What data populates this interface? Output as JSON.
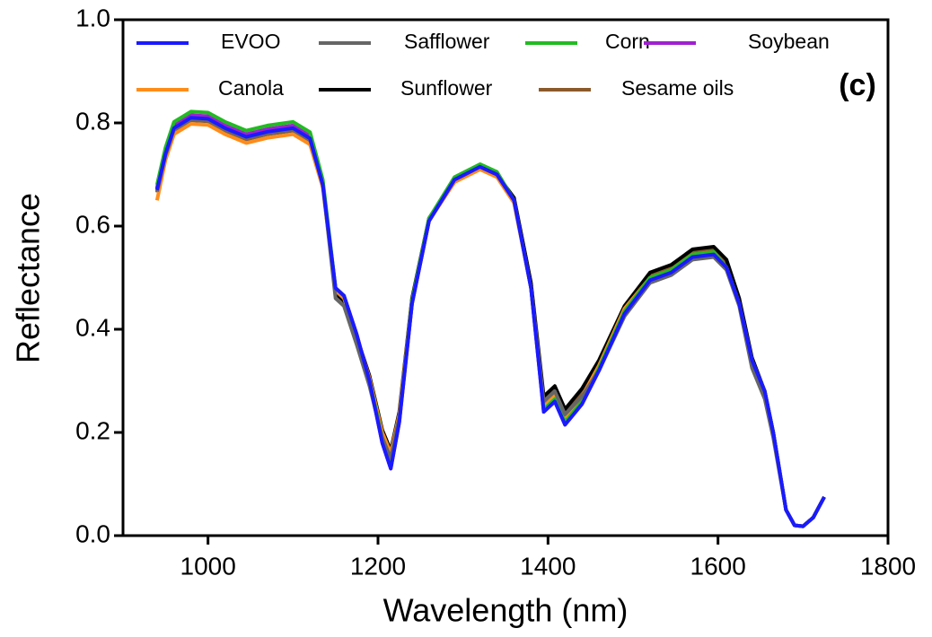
{
  "chart_data": {
    "type": "line",
    "xlabel": "Wavelength (nm)",
    "ylabel": "Reflectance",
    "annotation": "(c)",
    "xlim": [
      900,
      1800
    ],
    "xticks": [
      1000,
      1200,
      1400,
      1600,
      1800
    ],
    "ylim": [
      0,
      1.0
    ],
    "yticks": [
      {
        "value": 0,
        "label": "0.0"
      },
      {
        "value": 0.2,
        "label": "0.2"
      },
      {
        "value": 0.4,
        "label": "0.4"
      },
      {
        "value": 0.6,
        "label": "0.6"
      },
      {
        "value": 0.8,
        "label": "0.8"
      },
      {
        "value": 1.0,
        "label": "1.0"
      }
    ],
    "grid": false,
    "x": [
      940,
      950,
      960,
      980,
      1000,
      1020,
      1045,
      1070,
      1100,
      1120,
      1135,
      1150,
      1160,
      1175,
      1190,
      1205,
      1215,
      1225,
      1240,
      1260,
      1290,
      1320,
      1340,
      1360,
      1380,
      1395,
      1408,
      1420,
      1440,
      1460,
      1490,
      1520,
      1545,
      1570,
      1595,
      1610,
      1625,
      1640,
      1655,
      1665,
      1680,
      1690,
      1700,
      1712,
      1725
    ],
    "series": [
      {
        "name": "EVOO",
        "color": "#1a1aff",
        "values": [
          0.67,
          0.74,
          0.79,
          0.81,
          0.808,
          0.79,
          0.773,
          0.783,
          0.79,
          0.77,
          0.68,
          0.48,
          0.465,
          0.39,
          0.3,
          0.18,
          0.13,
          0.22,
          0.45,
          0.61,
          0.69,
          0.715,
          0.7,
          0.65,
          0.48,
          0.24,
          0.26,
          0.215,
          0.255,
          0.32,
          0.43,
          0.495,
          0.51,
          0.54,
          0.545,
          0.52,
          0.45,
          0.34,
          0.28,
          0.2,
          0.05,
          0.02,
          0.018,
          0.035,
          0.075
        ]
      },
      {
        "name": "Safflower",
        "color": "#666666",
        "values": [
          0.667,
          0.737,
          0.787,
          0.807,
          0.805,
          0.787,
          0.77,
          0.78,
          0.787,
          0.767,
          0.68,
          0.46,
          0.445,
          0.37,
          0.29,
          0.19,
          0.15,
          0.23,
          0.45,
          0.61,
          0.69,
          0.715,
          0.7,
          0.65,
          0.48,
          0.26,
          0.28,
          0.235,
          0.27,
          0.32,
          0.425,
          0.49,
          0.505,
          0.535,
          0.54,
          0.515,
          0.445,
          0.325,
          0.265,
          0.19,
          0.05,
          0.02,
          0.018,
          0.035,
          0.075
        ]
      },
      {
        "name": "Corn",
        "color": "#22bb22",
        "values": [
          0.68,
          0.752,
          0.802,
          0.822,
          0.82,
          0.802,
          0.785,
          0.795,
          0.802,
          0.782,
          0.69,
          0.48,
          0.465,
          0.385,
          0.3,
          0.19,
          0.145,
          0.225,
          0.455,
          0.615,
          0.695,
          0.72,
          0.705,
          0.65,
          0.48,
          0.245,
          0.265,
          0.22,
          0.26,
          0.325,
          0.435,
          0.5,
          0.515,
          0.545,
          0.55,
          0.52,
          0.45,
          0.34,
          0.28,
          0.2,
          0.05,
          0.02,
          0.018,
          0.035,
          0.075
        ]
      },
      {
        "name": "Soybean",
        "color": "#a020d0",
        "values": [
          0.675,
          0.745,
          0.795,
          0.815,
          0.813,
          0.795,
          0.778,
          0.788,
          0.795,
          0.775,
          0.68,
          0.48,
          0.465,
          0.39,
          0.3,
          0.18,
          0.13,
          0.22,
          0.45,
          0.61,
          0.69,
          0.715,
          0.7,
          0.65,
          0.48,
          0.24,
          0.26,
          0.215,
          0.255,
          0.32,
          0.43,
          0.495,
          0.51,
          0.54,
          0.545,
          0.52,
          0.45,
          0.34,
          0.28,
          0.2,
          0.05,
          0.02,
          0.018,
          0.035,
          0.075
        ]
      },
      {
        "name": "Canola",
        "color": "#ff8c1a",
        "values": [
          0.65,
          0.728,
          0.778,
          0.798,
          0.796,
          0.778,
          0.761,
          0.771,
          0.778,
          0.758,
          0.675,
          0.475,
          0.46,
          0.385,
          0.305,
          0.2,
          0.16,
          0.235,
          0.455,
          0.61,
          0.685,
          0.71,
          0.695,
          0.645,
          0.48,
          0.255,
          0.275,
          0.23,
          0.27,
          0.33,
          0.44,
          0.5,
          0.515,
          0.545,
          0.55,
          0.52,
          0.45,
          0.335,
          0.275,
          0.2,
          0.05,
          0.02,
          0.018,
          0.035,
          0.075
        ]
      },
      {
        "name": "Sunflower",
        "color": "#000000",
        "values": [
          0.672,
          0.742,
          0.792,
          0.812,
          0.81,
          0.792,
          0.775,
          0.785,
          0.792,
          0.772,
          0.685,
          0.47,
          0.455,
          0.385,
          0.31,
          0.205,
          0.165,
          0.24,
          0.46,
          0.615,
          0.69,
          0.715,
          0.7,
          0.655,
          0.49,
          0.27,
          0.29,
          0.245,
          0.285,
          0.34,
          0.445,
          0.51,
          0.525,
          0.555,
          0.56,
          0.535,
          0.46,
          0.345,
          0.28,
          0.2,
          0.05,
          0.02,
          0.018,
          0.035,
          0.075
        ]
      },
      {
        "name": "Sesame oils",
        "color": "#8b5a2b",
        "values": [
          0.665,
          0.735,
          0.785,
          0.805,
          0.803,
          0.785,
          0.768,
          0.778,
          0.785,
          0.765,
          0.68,
          0.47,
          0.455,
          0.38,
          0.3,
          0.195,
          0.155,
          0.23,
          0.455,
          0.61,
          0.69,
          0.712,
          0.698,
          0.648,
          0.485,
          0.265,
          0.285,
          0.24,
          0.28,
          0.335,
          0.44,
          0.505,
          0.52,
          0.55,
          0.555,
          0.528,
          0.455,
          0.34,
          0.278,
          0.2,
          0.05,
          0.02,
          0.018,
          0.035,
          0.075
        ]
      }
    ]
  }
}
